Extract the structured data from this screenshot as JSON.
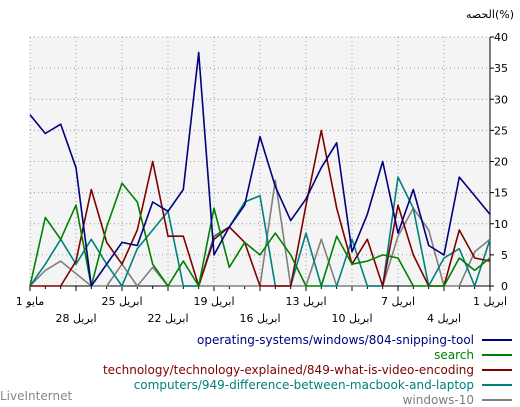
{
  "chart_data": {
    "type": "line",
    "ylabel": "الحصه(%)",
    "ylim": [
      0,
      40
    ],
    "y_ticks": [
      "0",
      "5",
      "10",
      "15",
      "20",
      "25",
      "30",
      "35",
      "40"
    ],
    "grid": true,
    "legend_position": "bottom-right",
    "x_ticks_upper": [
      {
        "i": 0,
        "label": "1 مايو"
      },
      {
        "i": 6,
        "label": "25 ابريل"
      },
      {
        "i": 12,
        "label": "19 ابريل"
      },
      {
        "i": 18,
        "label": "13 ابريل"
      },
      {
        "i": 24,
        "label": "7 ابريل"
      },
      {
        "i": 30,
        "label": "1 ابريل"
      }
    ],
    "x_ticks_lower": [
      {
        "i": 3,
        "label": "28 ابريل"
      },
      {
        "i": 9,
        "label": "22 ابريل"
      },
      {
        "i": 15,
        "label": "16 ابريل"
      },
      {
        "i": 21,
        "label": "10 ابريل"
      },
      {
        "i": 27,
        "label": "4 ابريل"
      }
    ],
    "x_count": 31,
    "series": [
      {
        "name": "operating-systems/windows/804-snipping-tool",
        "color": "#000080",
        "values": [
          27.5,
          24.5,
          26,
          19,
          0,
          3.5,
          7,
          6.5,
          13.5,
          12,
          15.5,
          37.5,
          5,
          9.5,
          13,
          24,
          16,
          10.5,
          14,
          19,
          23,
          5.5,
          11.5,
          20,
          8.5,
          15.5,
          6.5,
          5,
          17.5,
          14.5,
          11.5
        ]
      },
      {
        "name": "search",
        "color": "#008000",
        "values": [
          0,
          11,
          7.5,
          13,
          0,
          9.5,
          16.5,
          13.5,
          3.5,
          0,
          4,
          0,
          12.5,
          3,
          7,
          5,
          8.5,
          5,
          0,
          0,
          8,
          3.5,
          4,
          5,
          4.5,
          0,
          0,
          0,
          4.5,
          2.5,
          4.5
        ]
      },
      {
        "name": "technology/technology-explained/849-what-is-video-encoding",
        "color": "#800000",
        "values": [
          0,
          0,
          0,
          4,
          15.5,
          7,
          3.5,
          9,
          20,
          8,
          8,
          0,
          7.5,
          9.5,
          7,
          0,
          0,
          0,
          13,
          25,
          12.5,
          3.5,
          7.5,
          0,
          13,
          5,
          0,
          0,
          9,
          4.5,
          4
        ]
      },
      {
        "name": "computers/949-difference-between-macbook-and-laptop",
        "color": "#008080",
        "values": [
          0,
          3.5,
          7.5,
          3.5,
          7.5,
          3.5,
          0,
          6,
          9,
          12,
          0,
          0,
          8,
          9.5,
          13.5,
          14.5,
          0,
          0,
          8.5,
          0,
          0,
          7.5,
          0,
          0,
          17.5,
          12.5,
          0,
          4.5,
          6,
          0,
          7.5
        ]
      },
      {
        "name": "windows-10",
        "color": "#808080",
        "values": [
          0,
          2.5,
          4,
          2,
          0,
          0,
          3.5,
          0,
          3,
          0,
          0,
          0,
          0,
          0,
          0,
          0,
          17,
          0,
          0,
          7.5,
          0,
          0,
          0,
          0,
          8,
          12.5,
          9,
          0,
          0,
          5.5,
          7.5
        ]
      }
    ]
  },
  "watermark": "LiveInternet"
}
